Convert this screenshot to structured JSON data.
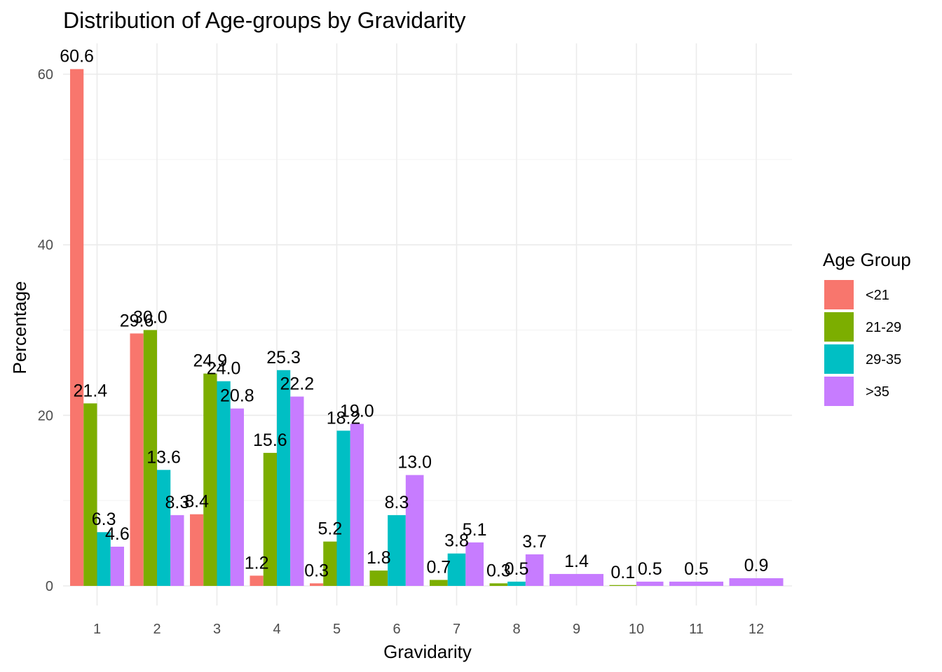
{
  "chart_data": {
    "type": "bar",
    "title": "Distribution of Age-groups by Gravidarity",
    "xlabel": "Gravidarity",
    "ylabel": "Percentage",
    "categories": [
      "1",
      "2",
      "3",
      "4",
      "5",
      "6",
      "7",
      "8",
      "9",
      "10",
      "11",
      "12"
    ],
    "series": [
      {
        "name": "<21",
        "color": "#F8766D",
        "values": [
          60.6,
          29.6,
          8.4,
          1.2,
          0.3,
          null,
          null,
          null,
          null,
          null,
          null,
          null
        ]
      },
      {
        "name": "21-29",
        "color": "#7CAE00",
        "values": [
          21.4,
          30.0,
          24.9,
          15.6,
          5.2,
          1.8,
          0.7,
          0.3,
          null,
          0.1,
          null,
          null
        ]
      },
      {
        "name": "29-35",
        "color": "#00BFC4",
        "values": [
          6.3,
          13.6,
          24.0,
          25.3,
          18.2,
          8.3,
          3.8,
          0.5,
          null,
          null,
          null,
          null
        ]
      },
      {
        "name": ">35",
        "color": "#C77CFF",
        "values": [
          4.6,
          8.3,
          20.8,
          22.2,
          19.0,
          13.0,
          5.1,
          3.7,
          1.4,
          0.5,
          0.5,
          0.9
        ]
      }
    ],
    "data_labels": [
      [
        "60.6",
        "29.6",
        "8.4",
        "1.2",
        "0.3",
        null,
        null,
        null,
        null,
        null,
        null,
        null
      ],
      [
        "21.4",
        "30.0",
        "24.9",
        "15.6",
        "5.2",
        "1.8",
        "0.7",
        "0.3",
        null,
        "0.1",
        null,
        null
      ],
      [
        "6.3",
        "13.6",
        "24.0",
        "25.3",
        "18.2",
        "8.3",
        "3.8",
        "0.5",
        null,
        null,
        null,
        null
      ],
      [
        "4.6",
        "8.3",
        "20.8",
        "22.2",
        "19.0",
        "13.0",
        "5.1",
        "3.7",
        "1.4",
        "0.5",
        "0.5",
        "0.9"
      ]
    ],
    "ylim": [
      -4.5,
      63.3
    ],
    "yticks": [
      0,
      20,
      40,
      60
    ],
    "grid": true,
    "legend": {
      "title": "Age Group",
      "position": "right"
    }
  }
}
